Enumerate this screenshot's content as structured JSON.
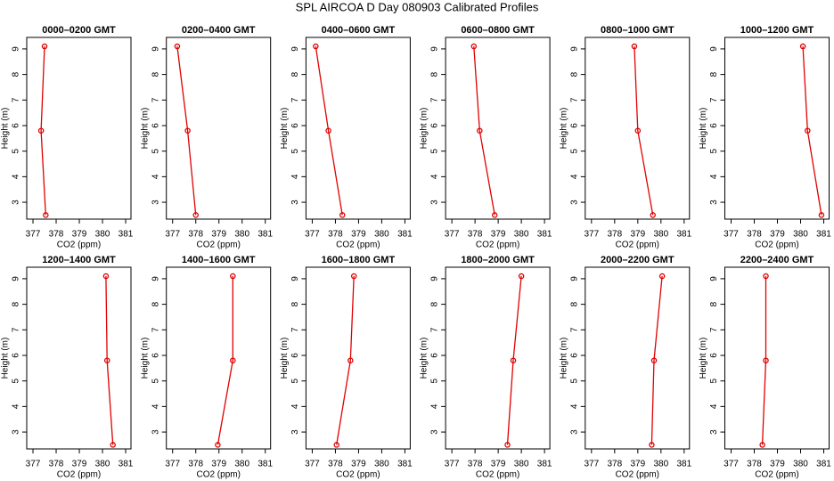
{
  "title": "SPL AIRCOA D  Day 080903  Calibrated Profiles",
  "chart_data": [
    {
      "type": "line",
      "title": "0000–0200 GMT",
      "xlabel": "CO2 (ppm)",
      "ylabel": "Height (m)",
      "color": "#e00000",
      "x": [
        377.55,
        377.35,
        377.5
      ],
      "values": [
        2.5,
        5.8,
        9.1
      ],
      "xlim": [
        376.73,
        381.23
      ],
      "ylim": [
        2.34,
        9.45
      ],
      "xticks": [
        377,
        378,
        379,
        380,
        381
      ],
      "yticks": [
        3,
        4,
        5,
        6,
        7,
        8,
        9
      ]
    },
    {
      "type": "line",
      "title": "0200–0400 GMT",
      "xlabel": "CO2 (ppm)",
      "ylabel": "Height (m)",
      "color": "#e00000",
      "x": [
        378.0,
        377.65,
        377.2
      ],
      "values": [
        2.5,
        5.8,
        9.1
      ],
      "xlim": [
        376.73,
        381.23
      ],
      "ylim": [
        2.34,
        9.45
      ],
      "xticks": [
        377,
        378,
        379,
        380,
        381
      ],
      "yticks": [
        3,
        4,
        5,
        6,
        7,
        8,
        9
      ]
    },
    {
      "type": "line",
      "title": "0400–0600 GMT",
      "xlabel": "CO2 (ppm)",
      "ylabel": "Height (m)",
      "color": "#e00000",
      "x": [
        378.3,
        377.7,
        377.15
      ],
      "values": [
        2.5,
        5.8,
        9.1
      ],
      "xlim": [
        376.73,
        381.23
      ],
      "ylim": [
        2.34,
        9.45
      ],
      "xticks": [
        377,
        378,
        379,
        380,
        381
      ],
      "yticks": [
        3,
        4,
        5,
        6,
        7,
        8,
        9
      ]
    },
    {
      "type": "line",
      "title": "0600–0800 GMT",
      "xlabel": "CO2 (ppm)",
      "ylabel": "Height (m)",
      "color": "#e00000",
      "x": [
        378.85,
        378.2,
        377.95
      ],
      "values": [
        2.5,
        5.8,
        9.1
      ],
      "xlim": [
        376.73,
        381.23
      ],
      "ylim": [
        2.34,
        9.45
      ],
      "xticks": [
        377,
        378,
        379,
        380,
        381
      ],
      "yticks": [
        3,
        4,
        5,
        6,
        7,
        8,
        9
      ]
    },
    {
      "type": "line",
      "title": "0800–1000 GMT",
      "xlabel": "CO2 (ppm)",
      "ylabel": "Height (m)",
      "color": "#e00000",
      "x": [
        379.65,
        379.0,
        378.85
      ],
      "values": [
        2.5,
        5.8,
        9.1
      ],
      "xlim": [
        376.73,
        381.23
      ],
      "ylim": [
        2.34,
        9.45
      ],
      "xticks": [
        377,
        378,
        379,
        380,
        381
      ],
      "yticks": [
        3,
        4,
        5,
        6,
        7,
        8,
        9
      ]
    },
    {
      "type": "line",
      "title": "1000–1200 GMT",
      "xlabel": "CO2 (ppm)",
      "ylabel": "Height (m)",
      "color": "#e00000",
      "x": [
        380.9,
        380.3,
        380.1
      ],
      "values": [
        2.5,
        5.8,
        9.1
      ],
      "xlim": [
        376.73,
        381.23
      ],
      "ylim": [
        2.34,
        9.45
      ],
      "xticks": [
        377,
        378,
        379,
        380,
        381
      ],
      "yticks": [
        3,
        4,
        5,
        6,
        7,
        8,
        9
      ]
    },
    {
      "type": "line",
      "title": "1200–1400 GMT",
      "xlabel": "CO2 (ppm)",
      "ylabel": "Height (m)",
      "color": "#e00000",
      "x": [
        380.45,
        380.2,
        380.15
      ],
      "values": [
        2.5,
        5.8,
        9.1
      ],
      "xlim": [
        376.73,
        381.23
      ],
      "ylim": [
        2.34,
        9.45
      ],
      "xticks": [
        377,
        378,
        379,
        380,
        381
      ],
      "yticks": [
        3,
        4,
        5,
        6,
        7,
        8,
        9
      ]
    },
    {
      "type": "line",
      "title": "1400–1600 GMT",
      "xlabel": "CO2 (ppm)",
      "ylabel": "Height (m)",
      "color": "#e00000",
      "x": [
        378.95,
        379.6,
        379.6
      ],
      "values": [
        2.5,
        5.8,
        9.1
      ],
      "xlim": [
        376.73,
        381.23
      ],
      "ylim": [
        2.34,
        9.45
      ],
      "xticks": [
        377,
        378,
        379,
        380,
        381
      ],
      "yticks": [
        3,
        4,
        5,
        6,
        7,
        8,
        9
      ]
    },
    {
      "type": "line",
      "title": "1600–1800 GMT",
      "xlabel": "CO2 (ppm)",
      "ylabel": "Height (m)",
      "color": "#e00000",
      "x": [
        378.05,
        378.65,
        378.8
      ],
      "values": [
        2.5,
        5.8,
        9.1
      ],
      "xlim": [
        376.73,
        381.23
      ],
      "ylim": [
        2.34,
        9.45
      ],
      "xticks": [
        377,
        378,
        379,
        380,
        381
      ],
      "yticks": [
        3,
        4,
        5,
        6,
        7,
        8,
        9
      ]
    },
    {
      "type": "line",
      "title": "1800–2000 GMT",
      "xlabel": "CO2 (ppm)",
      "ylabel": "Height (m)",
      "color": "#e00000",
      "x": [
        379.4,
        379.65,
        380.0
      ],
      "values": [
        2.5,
        5.8,
        9.1
      ],
      "xlim": [
        376.73,
        381.23
      ],
      "ylim": [
        2.34,
        9.45
      ],
      "xticks": [
        377,
        378,
        379,
        380,
        381
      ],
      "yticks": [
        3,
        4,
        5,
        6,
        7,
        8,
        9
      ]
    },
    {
      "type": "line",
      "title": "2000–2200 GMT",
      "xlabel": "CO2 (ppm)",
      "ylabel": "Height (m)",
      "color": "#e00000",
      "x": [
        379.6,
        379.7,
        380.05
      ],
      "values": [
        2.5,
        5.8,
        9.1
      ],
      "xlim": [
        376.73,
        381.23
      ],
      "ylim": [
        2.34,
        9.45
      ],
      "xticks": [
        377,
        378,
        379,
        380,
        381
      ],
      "yticks": [
        3,
        4,
        5,
        6,
        7,
        8,
        9
      ]
    },
    {
      "type": "line",
      "title": "2200–2400 GMT",
      "xlabel": "CO2 (ppm)",
      "ylabel": "Height (m)",
      "color": "#e00000",
      "x": [
        378.35,
        378.5,
        378.5
      ],
      "values": [
        2.5,
        5.8,
        9.1
      ],
      "xlim": [
        376.73,
        381.23
      ],
      "ylim": [
        2.34,
        9.45
      ],
      "xticks": [
        377,
        378,
        379,
        380,
        381
      ],
      "yticks": [
        3,
        4,
        5,
        6,
        7,
        8,
        9
      ]
    }
  ]
}
